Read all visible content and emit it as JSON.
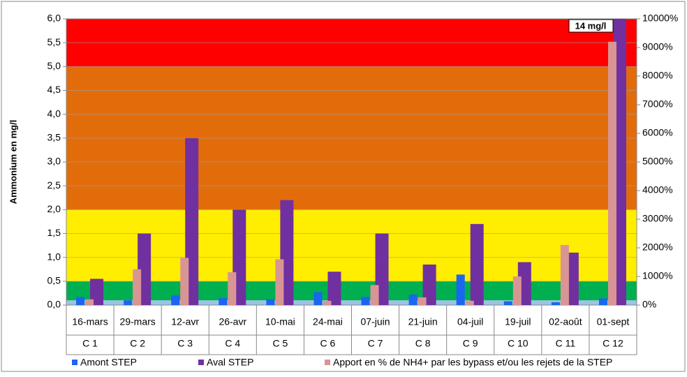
{
  "chart_data": {
    "type": "bar",
    "y_label": "Ammonium en mg/l",
    "categories": [
      "16-mars",
      "29-mars",
      "12-avr",
      "26-avr",
      "10-mai",
      "24-mai",
      "07-juin",
      "21-juin",
      "04-juil",
      "19-juil",
      "02-août",
      "01-sept"
    ],
    "sub_categories": [
      "C 1",
      "C 2",
      "C 3",
      "C 4",
      "C 5",
      "C 6",
      "C 7",
      "C 8",
      "C 9",
      "C 10",
      "C 11",
      "C 12"
    ],
    "series": [
      {
        "name": "Amont STEP",
        "color": "#1a66f0",
        "values": [
          0.17,
          0.1,
          0.2,
          0.15,
          0.12,
          0.27,
          0.17,
          0.22,
          0.64,
          0.08,
          0.06,
          0.14
        ]
      },
      {
        "name": "Aval STEP",
        "color": "#7030a0",
        "values": [
          0.55,
          1.5,
          3.5,
          2.0,
          2.2,
          0.7,
          1.5,
          0.85,
          1.7,
          0.9,
          1.1,
          14
        ]
      },
      {
        "name": "Apport en % de NH4+ par les bypass et/ou les rejets de la STEP",
        "color": "#d99594",
        "axis": "y2",
        "values": [
          200,
          1250,
          1650,
          1150,
          1600,
          150,
          700,
          270,
          150,
          1000,
          2100,
          9200
        ]
      }
    ],
    "annotation": "14 mg/l",
    "bands": [
      {
        "range": [
          0,
          0.1
        ],
        "color": "#9cc3e5"
      },
      {
        "range": [
          0.1,
          0.5
        ],
        "color": "#00b050"
      },
      {
        "range": [
          0.5,
          2
        ],
        "color": "#ffee00"
      },
      {
        "range": [
          2,
          5
        ],
        "color": "#e36c0a"
      },
      {
        "range": [
          5,
          6
        ],
        "color": "#ff0000"
      }
    ],
    "ylim": [
      0,
      6
    ],
    "yticks": [
      {
        "value": 0,
        "label": "0,0"
      },
      {
        "value": 0.5,
        "label": "0,5"
      },
      {
        "value": 1,
        "label": "1,0"
      },
      {
        "value": 1.5,
        "label": "1,5"
      },
      {
        "value": 2,
        "label": "2,0"
      },
      {
        "value": 2.5,
        "label": "2,5"
      },
      {
        "value": 3,
        "label": "3,0"
      },
      {
        "value": 3.5,
        "label": "3,5"
      },
      {
        "value": 4,
        "label": "4,0"
      },
      {
        "value": 4.5,
        "label": "4,5"
      },
      {
        "value": 5,
        "label": "5,0"
      },
      {
        "value": 5.5,
        "label": "5,5"
      },
      {
        "value": 6,
        "label": "6,0"
      }
    ],
    "y2lim": [
      0,
      10000
    ],
    "y2ticks": [
      {
        "value": 0,
        "label": "0%"
      },
      {
        "value": 1000,
        "label": "1000%"
      },
      {
        "value": 2000,
        "label": "2000%"
      },
      {
        "value": 3000,
        "label": "3000%"
      },
      {
        "value": 4000,
        "label": "4000%"
      },
      {
        "value": 5000,
        "label": "5000%"
      },
      {
        "value": 6000,
        "label": "6000%"
      },
      {
        "value": 7000,
        "label": "7000%"
      },
      {
        "value": 8000,
        "label": "8000%"
      },
      {
        "value": 9000,
        "label": "9000%"
      },
      {
        "value": 10000,
        "label": "10000%"
      }
    ],
    "grid": true
  }
}
